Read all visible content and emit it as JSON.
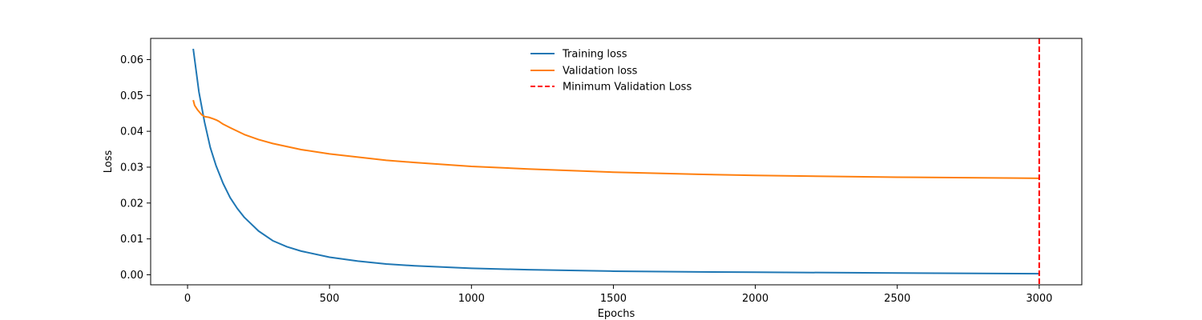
{
  "chart_data": {
    "type": "line",
    "xlabel": "Epochs",
    "ylabel": "Loss",
    "xlim": [
      -130,
      3150
    ],
    "ylim": [
      -0.0028,
      0.0659
    ],
    "x_ticks": [
      0,
      500,
      1000,
      1500,
      2000,
      2500,
      3000
    ],
    "y_ticks": [
      0.0,
      0.01,
      0.02,
      0.03,
      0.04,
      0.05,
      0.06
    ],
    "x_tick_labels": [
      "0",
      "500",
      "1000",
      "1500",
      "2000",
      "2500",
      "3000"
    ],
    "y_tick_labels": [
      "0.00",
      "0.01",
      "0.02",
      "0.03",
      "0.04",
      "0.05",
      "0.06"
    ],
    "grid": false,
    "legend_position": "top-center",
    "series": [
      {
        "name": "Training loss",
        "color": "#1f77b4",
        "style": "solid",
        "x": [
          20,
          40,
          60,
          80,
          100,
          125,
          150,
          175,
          200,
          250,
          300,
          350,
          400,
          500,
          600,
          700,
          800,
          1000,
          1200,
          1500,
          1800,
          2000,
          2500,
          3000
        ],
        "y": [
          0.063,
          0.051,
          0.0425,
          0.0355,
          0.0305,
          0.0255,
          0.0215,
          0.0185,
          0.016,
          0.0122,
          0.0095,
          0.0078,
          0.0066,
          0.0049,
          0.0038,
          0.003,
          0.0025,
          0.0018,
          0.0014,
          0.001,
          0.0008,
          0.0007,
          0.0005,
          0.0003
        ]
      },
      {
        "name": "Validation loss",
        "color": "#ff7f0e",
        "style": "solid",
        "x": [
          20,
          25,
          35,
          50,
          60,
          75,
          90,
          100,
          110,
          125,
          150,
          200,
          250,
          300,
          400,
          500,
          600,
          700,
          800,
          1000,
          1200,
          1500,
          1800,
          2000,
          2500,
          3000
        ],
        "y": [
          0.0487,
          0.0472,
          0.046,
          0.0446,
          0.0441,
          0.0439,
          0.0435,
          0.0432,
          0.0428,
          0.042,
          0.041,
          0.0391,
          0.0377,
          0.0366,
          0.0349,
          0.0337,
          0.0328,
          0.0319,
          0.0313,
          0.0302,
          0.0295,
          0.0286,
          0.028,
          0.0277,
          0.0272,
          0.0269
        ]
      }
    ],
    "vlines": [
      {
        "name": "Minimum Validation Loss",
        "x": 3000,
        "color": "#ff0000",
        "style": "dashed"
      }
    ]
  }
}
